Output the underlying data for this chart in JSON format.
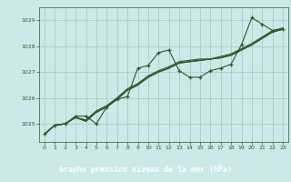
{
  "title": "Graphe pression niveau de la mer (hPa)",
  "bg_color": "#cce8e8",
  "grid_color": "#aacccc",
  "line_color": "#2d5a2d",
  "label_bg": "#2d5a2d",
  "label_fg": "#ffffff",
  "xlim": [
    -0.5,
    23.5
  ],
  "ylim": [
    1024.3,
    1029.5
  ],
  "yticks": [
    1025,
    1026,
    1027,
    1028,
    1029
  ],
  "xticks": [
    0,
    1,
    2,
    3,
    4,
    5,
    6,
    7,
    8,
    9,
    10,
    11,
    12,
    13,
    14,
    15,
    16,
    17,
    18,
    19,
    20,
    21,
    22,
    23
  ],
  "series_jagged": [
    1024.6,
    1024.95,
    1025.0,
    1025.3,
    1025.3,
    1025.0,
    1025.65,
    1025.95,
    1026.05,
    1027.15,
    1027.25,
    1027.75,
    1027.85,
    1027.05,
    1026.8,
    1026.8,
    1027.05,
    1027.15,
    1027.3,
    1028.05,
    1029.1,
    1028.85,
    1028.6,
    1028.65
  ],
  "series_smooth1": [
    1024.6,
    1024.95,
    1025.0,
    1025.25,
    1025.15,
    1025.5,
    1025.7,
    1026.0,
    1026.35,
    1026.55,
    1026.85,
    1027.05,
    1027.2,
    1027.4,
    1027.45,
    1027.5,
    1027.5,
    1027.6,
    1027.7,
    1027.9,
    1028.1,
    1028.35,
    1028.6,
    1028.7
  ],
  "series_smooth2": [
    1024.6,
    1024.95,
    1025.0,
    1025.25,
    1025.1,
    1025.45,
    1025.65,
    1025.95,
    1026.3,
    1026.5,
    1026.8,
    1027.0,
    1027.15,
    1027.35,
    1027.4,
    1027.45,
    1027.5,
    1027.55,
    1027.65,
    1027.85,
    1028.05,
    1028.3,
    1028.55,
    1028.65
  ],
  "series_smooth3": [
    1024.6,
    1024.95,
    1025.0,
    1025.25,
    1025.1,
    1025.45,
    1025.65,
    1025.95,
    1026.3,
    1026.5,
    1026.8,
    1027.0,
    1027.15,
    1027.35,
    1027.4,
    1027.45,
    1027.5,
    1027.55,
    1027.65,
    1027.85,
    1028.05,
    1028.3,
    1028.55,
    1028.65
  ]
}
